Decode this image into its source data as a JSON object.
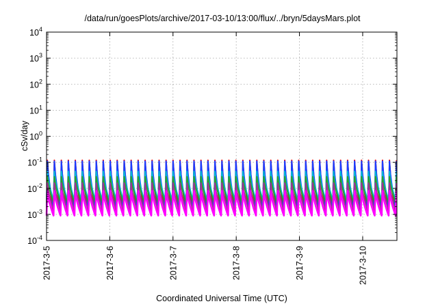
{
  "chart_data": {
    "type": "line",
    "title": "/data/run/goesPlots/archive/2017-03-10/13:00/flux/../bryn/5daysMars.plot",
    "xlabel": "Coordinated Universal Time (UTC)",
    "ylabel": "cSv/day",
    "y_scale": "log",
    "ylim": [
      0.0001,
      10000
    ],
    "y_tick_labels": [
      {
        "base": "10",
        "exp": "-4"
      },
      {
        "base": "10",
        "exp": "-3"
      },
      {
        "base": "10",
        "exp": "-2"
      },
      {
        "base": "10",
        "exp": "-1"
      },
      {
        "base": "10",
        "exp": "0"
      },
      {
        "base": "10",
        "exp": "1"
      },
      {
        "base": "10",
        "exp": "2"
      },
      {
        "base": "10",
        "exp": "3"
      },
      {
        "base": "10",
        "exp": "4"
      }
    ],
    "x_tick_labels": [
      "2017-3-5",
      "2017-3-6",
      "2017-3-7",
      "2017-3-8",
      "2017-3-9",
      "2017-3-10"
    ],
    "xlim": [
      "2017-03-05 00:00",
      "2017-03-10 13:00"
    ],
    "grid": true,
    "oscillation_period_hours": 2.65,
    "series": [
      {
        "color": "#e8000b",
        "min": 0.0011,
        "max": 0.12
      },
      {
        "color": "#1a3cff",
        "min": 0.0019,
        "max": 0.11
      },
      {
        "color": "#00b8d8",
        "min": 0.0035,
        "max": 0.045
      },
      {
        "color": "#2ca02c",
        "min": 0.0028,
        "max": 0.028
      },
      {
        "color": "#a0329a",
        "min": 0.0014,
        "max": 0.016
      },
      {
        "color": "#ff00ff",
        "min": 0.0009,
        "max": 0.008
      }
    ]
  }
}
